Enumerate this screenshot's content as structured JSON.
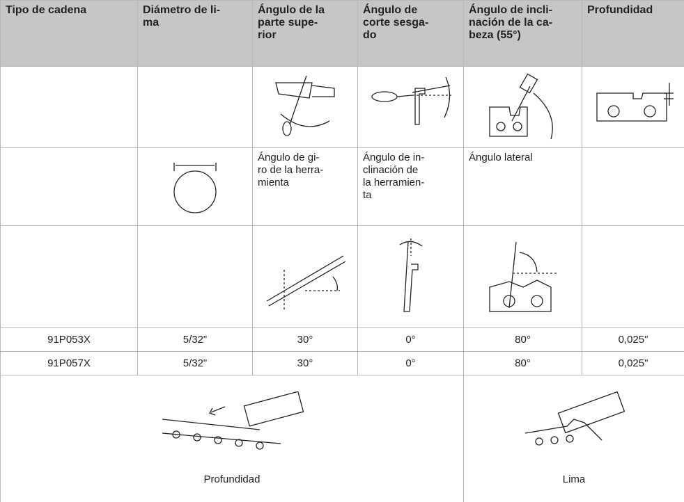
{
  "table": {
    "header": [
      "Tipo de cadena",
      "Diámetro de li-\nma",
      "Ángulo de la\nparte supe-\nrior",
      "Ángulo de\ncorte sesga-\ndo",
      "Ángulo de incli-\nnación de la ca-\nbeza (55°)",
      "Profundidad"
    ],
    "angle_names": [
      "Ángulo de gi-\nro de la herra-\nmienta",
      "Ángulo de in-\nclinación de\nla herramien-\nta",
      "Ángulo lateral"
    ],
    "rows": [
      [
        "91P053X",
        "5/32\"",
        "30°",
        "0°",
        "80°",
        "0,025\""
      ],
      [
        "91P057X",
        "5/32\"",
        "30°",
        "0°",
        "80°",
        "0,025\""
      ]
    ],
    "figures": [
      "Profundidad",
      "Lima"
    ]
  }
}
